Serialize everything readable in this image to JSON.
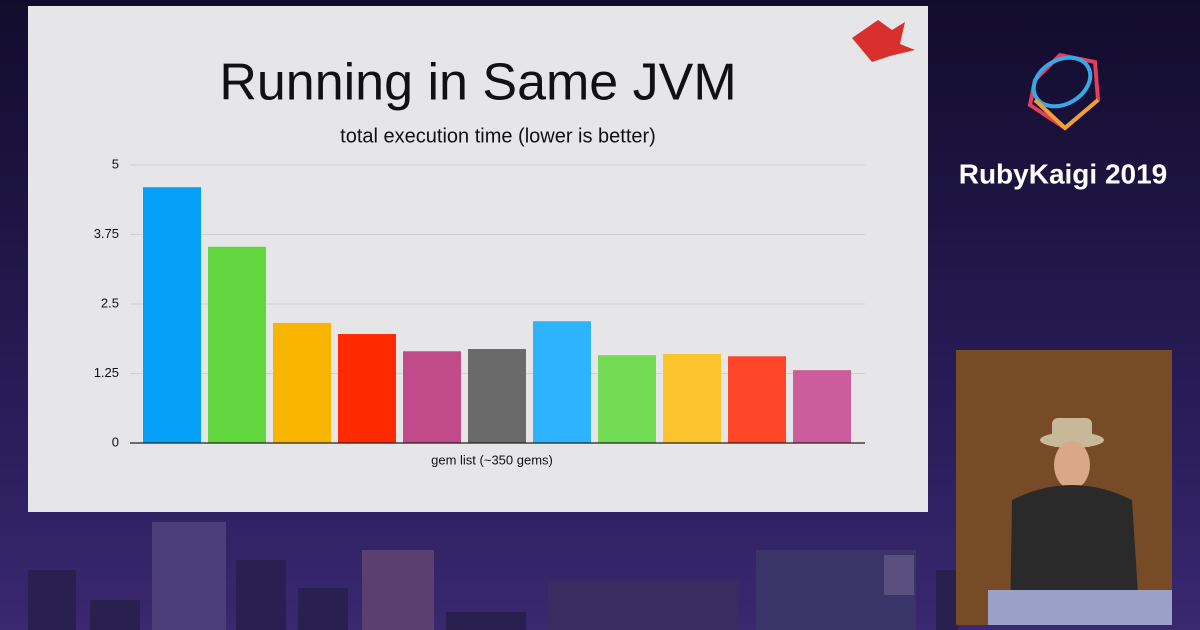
{
  "chart_data": {
    "type": "bar",
    "title": "Running in Same JVM",
    "subtitle": "total execution time (lower is better)",
    "x_label": "gem list (~350 gems)",
    "categories": [
      null,
      null,
      null,
      null,
      null,
      null,
      null,
      null,
      null,
      null,
      null
    ],
    "values": [
      4.6,
      3.53,
      2.16,
      1.96,
      1.65,
      1.69,
      2.19,
      1.58,
      1.6,
      1.56,
      1.31
    ],
    "colors": [
      "#049ff6",
      "#62d63f",
      "#f8b500",
      "#ff2a00",
      "#c04a8a",
      "#6a6a6a",
      "#2eb3ff",
      "#74dc54",
      "#fbc42c",
      "#ff4628",
      "#cc5c9c"
    ],
    "ylim": [
      0,
      5
    ],
    "yticks": [
      0,
      1.25,
      2.5,
      3.75,
      5
    ],
    "grid": true
  },
  "branding": {
    "event": "RubyKaigi 2019"
  }
}
